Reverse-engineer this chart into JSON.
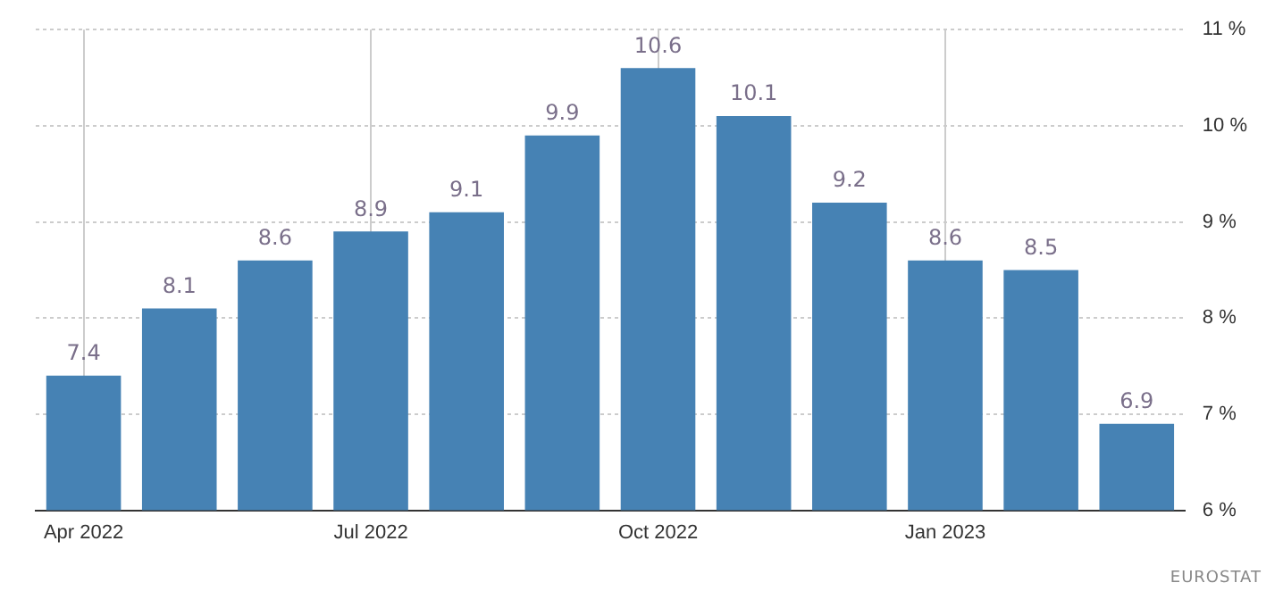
{
  "chart_data": {
    "type": "bar",
    "categories": [
      "Apr 2022",
      null,
      null,
      "Jul 2022",
      null,
      null,
      "Oct 2022",
      null,
      null,
      "Jan 2023",
      null,
      null
    ],
    "values": [
      7.4,
      8.1,
      8.6,
      8.9,
      9.1,
      9.9,
      10.6,
      10.1,
      9.2,
      8.6,
      8.5,
      6.9
    ],
    "color": "#4682b4",
    "ylim": [
      6,
      11
    ],
    "yticks": [
      {
        "value": 6,
        "label": "6 %"
      },
      {
        "value": 7,
        "label": "7 %"
      },
      {
        "value": 8,
        "label": "8 %"
      },
      {
        "value": 9,
        "label": "9 %"
      },
      {
        "value": 10,
        "label": "10 %"
      },
      {
        "value": 11,
        "label": "11 %"
      }
    ],
    "grid": true,
    "legend": false,
    "data_labels": true,
    "annotations": [
      "EUROSTAT"
    ]
  }
}
